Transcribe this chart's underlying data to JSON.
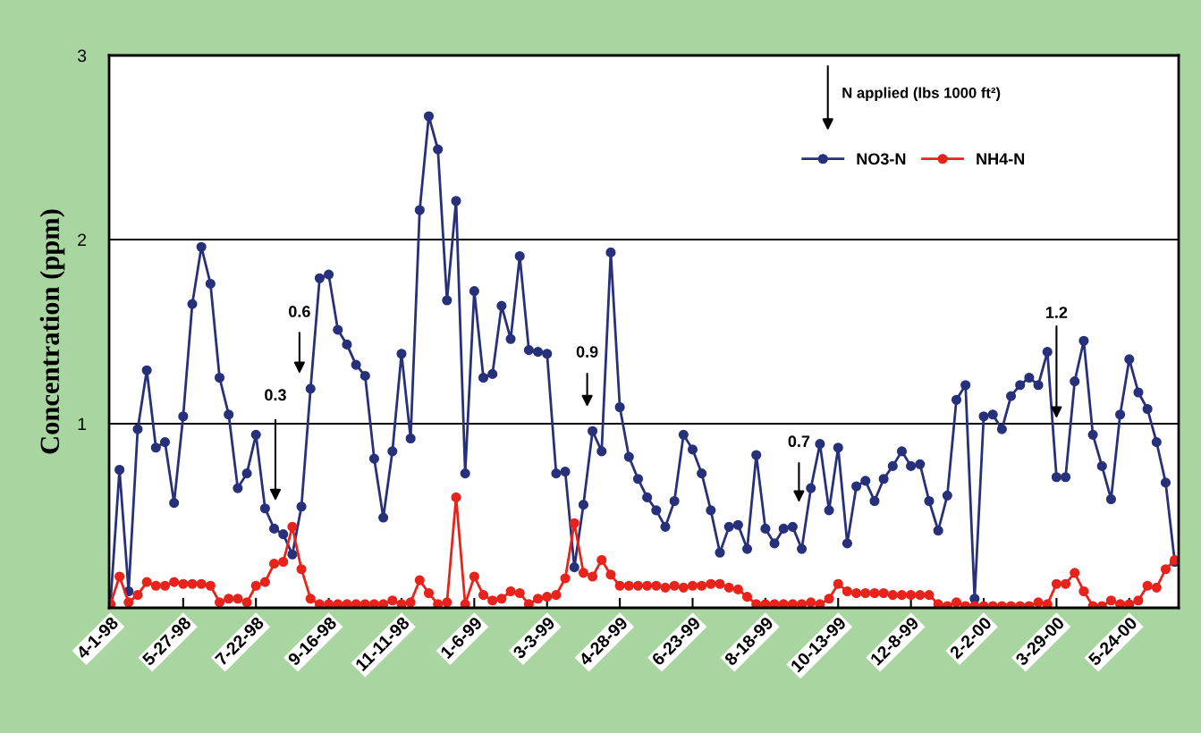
{
  "chart_data": {
    "type": "line",
    "ylabel": "Concentration (ppm)",
    "x": [
      "1998-04-01",
      "1998-04-08",
      "1998-04-15",
      "1998-04-22",
      "1998-04-29",
      "1998-05-06",
      "1998-05-13",
      "1998-05-20",
      "1998-05-27",
      "1998-06-03",
      "1998-06-10",
      "1998-06-17",
      "1998-06-24",
      "1998-07-01",
      "1998-07-08",
      "1998-07-15",
      "1998-07-22",
      "1998-07-29",
      "1998-08-05",
      "1998-08-12",
      "1998-08-19",
      "1998-08-26",
      "1998-09-02",
      "1998-09-09",
      "1998-09-16",
      "1998-09-23",
      "1998-09-30",
      "1998-10-07",
      "1998-10-14",
      "1998-10-21",
      "1998-10-28",
      "1998-11-04",
      "1998-11-11",
      "1998-11-18",
      "1998-11-25",
      "1998-12-02",
      "1998-12-09",
      "1998-12-16",
      "1998-12-23",
      "1998-12-30",
      "1999-01-06",
      "1999-01-13",
      "1999-01-20",
      "1999-01-27",
      "1999-02-03",
      "1999-02-10",
      "1999-02-17",
      "1999-02-24",
      "1999-03-03",
      "1999-03-10",
      "1999-03-17",
      "1999-03-24",
      "1999-03-31",
      "1999-04-07",
      "1999-04-14",
      "1999-04-21",
      "1999-04-28",
      "1999-05-05",
      "1999-05-12",
      "1999-05-19",
      "1999-05-26",
      "1999-06-02",
      "1999-06-09",
      "1999-06-16",
      "1999-06-23",
      "1999-06-30",
      "1999-07-07",
      "1999-07-14",
      "1999-07-21",
      "1999-07-28",
      "1999-08-04",
      "1999-08-11",
      "1999-08-18",
      "1999-08-25",
      "1999-09-01",
      "1999-09-08",
      "1999-09-15",
      "1999-09-22",
      "1999-09-29",
      "1999-10-06",
      "1999-10-13",
      "1999-10-20",
      "1999-10-27",
      "1999-11-03",
      "1999-11-10",
      "1999-11-17",
      "1999-11-24",
      "1999-12-01",
      "1999-12-08",
      "1999-12-15",
      "1999-12-22",
      "1999-12-29",
      "2000-01-05",
      "2000-01-12",
      "2000-01-19",
      "2000-01-26",
      "2000-02-02",
      "2000-02-09",
      "2000-02-16",
      "2000-02-23",
      "2000-03-01",
      "2000-03-08",
      "2000-03-15",
      "2000-03-22",
      "2000-03-29",
      "2000-04-05",
      "2000-04-12",
      "2000-04-19",
      "2000-04-26",
      "2000-05-03",
      "2000-05-10",
      "2000-05-17",
      "2000-05-24",
      "2000-05-31",
      "2000-06-07",
      "2000-06-14",
      "2000-06-21",
      "2000-06-28"
    ],
    "series": [
      {
        "name": "NO3-N",
        "color": "#27307a",
        "values": [
          0.02,
          0.75,
          0.09,
          0.97,
          1.29,
          0.87,
          0.9,
          0.57,
          1.04,
          1.65,
          1.96,
          1.76,
          1.25,
          1.05,
          0.65,
          0.73,
          0.94,
          0.54,
          0.43,
          0.4,
          0.29,
          0.55,
          1.19,
          1.79,
          1.81,
          1.51,
          1.43,
          1.32,
          1.26,
          0.81,
          0.49,
          0.85,
          1.38,
          0.92,
          2.16,
          2.67,
          2.49,
          1.67,
          2.21,
          0.73,
          1.72,
          1.25,
          1.27,
          1.64,
          1.46,
          1.91,
          1.4,
          1.39,
          1.38,
          0.73,
          0.74,
          0.22,
          0.56,
          0.96,
          0.85,
          1.93,
          1.09,
          0.82,
          0.7,
          0.6,
          0.53,
          0.44,
          0.58,
          0.94,
          0.86,
          0.73,
          0.53,
          0.3,
          0.44,
          0.45,
          0.32,
          0.83,
          0.43,
          0.35,
          0.43,
          0.44,
          0.32,
          0.65,
          0.89,
          0.53,
          0.87,
          0.35,
          0.66,
          0.69,
          0.58,
          0.7,
          0.77,
          0.85,
          0.77,
          0.78,
          0.58,
          0.42,
          0.61,
          1.13,
          1.21,
          0.05,
          1.04,
          1.05,
          0.97,
          1.15,
          1.21,
          1.25,
          1.21,
          1.39,
          0.71,
          0.71,
          1.23,
          1.45,
          0.94,
          0.77,
          0.59,
          1.05,
          1.35,
          1.17,
          1.08,
          0.9,
          0.68,
          0.25
        ]
      },
      {
        "name": "NH4-N",
        "color": "#e8231c",
        "values": [
          0.02,
          0.17,
          0.03,
          0.07,
          0.14,
          0.12,
          0.12,
          0.14,
          0.13,
          0.13,
          0.13,
          0.12,
          0.03,
          0.05,
          0.05,
          0.03,
          0.12,
          0.14,
          0.24,
          0.25,
          0.44,
          0.21,
          0.05,
          0.02,
          0.02,
          0.02,
          0.02,
          0.02,
          0.02,
          0.02,
          0.02,
          0.04,
          0.02,
          0.03,
          0.15,
          0.08,
          0.02,
          0.03,
          0.6,
          0.02,
          0.17,
          0.07,
          0.04,
          0.05,
          0.09,
          0.08,
          0.02,
          0.05,
          0.06,
          0.07,
          0.16,
          0.46,
          0.19,
          0.17,
          0.26,
          0.18,
          0.12,
          0.12,
          0.12,
          0.12,
          0.12,
          0.11,
          0.12,
          0.11,
          0.12,
          0.12,
          0.13,
          0.13,
          0.11,
          0.1,
          0.06,
          0.02,
          0.02,
          0.02,
          0.02,
          0.02,
          0.02,
          0.03,
          0.02,
          0.05,
          0.13,
          0.09,
          0.08,
          0.08,
          0.08,
          0.08,
          0.07,
          0.07,
          0.07,
          0.07,
          0.07,
          0.02,
          0.01,
          0.03,
          0.01,
          0.01,
          0.01,
          0.01,
          0.01,
          0.01,
          0.01,
          0.01,
          0.03,
          0.02,
          0.13,
          0.13,
          0.19,
          0.09,
          0.01,
          0.01,
          0.04,
          0.02,
          0.02,
          0.04,
          0.12,
          0.11,
          0.21,
          0.26
        ]
      }
    ],
    "xlim": [
      "1998-03-31",
      "2000-07-01"
    ],
    "xticks": [
      {
        "value": "1998-04-01",
        "label": "4-1-98"
      },
      {
        "value": "1998-05-27",
        "label": "5-27-98"
      },
      {
        "value": "1998-07-22",
        "label": "7-22-98"
      },
      {
        "value": "1998-09-16",
        "label": "9-16-98"
      },
      {
        "value": "1998-11-11",
        "label": "11-11-98"
      },
      {
        "value": "1999-01-06",
        "label": "1-6-99"
      },
      {
        "value": "1999-03-03",
        "label": "3-3-99"
      },
      {
        "value": "1999-04-28",
        "label": "4-28-99"
      },
      {
        "value": "1999-06-23",
        "label": "6-23-99"
      },
      {
        "value": "1999-08-18",
        "label": "8-18-99"
      },
      {
        "value": "1999-10-13",
        "label": "10-13-99"
      },
      {
        "value": "1999-12-08",
        "label": "12-8-99"
      },
      {
        "value": "2000-02-02",
        "label": "2-2-00"
      },
      {
        "value": "2000-03-29",
        "label": "3-29-00"
      },
      {
        "value": "2000-05-24",
        "label": "5-24-00"
      }
    ],
    "ylim": [
      0,
      3
    ],
    "yticks": [
      1,
      2,
      3
    ],
    "grid": "y",
    "legend": "top right",
    "marker": "circle",
    "line_style": "solid",
    "annotations": [
      "N applied (lbs 1000 ft²)",
      "0.3",
      "0.6",
      "0.9",
      "0.7",
      {
        "text": "1.2",
        "x": "2000-03-29",
        "y": 1.03
      }
    ]
  }
}
